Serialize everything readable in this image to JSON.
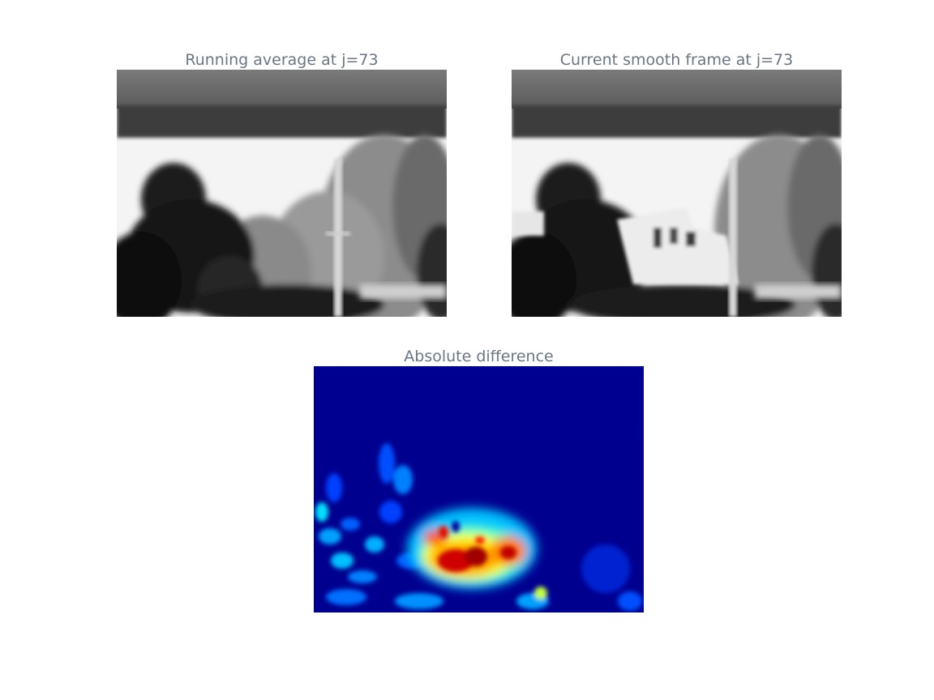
{
  "panels": {
    "running_average": {
      "title": "Running average at j=73",
      "colormap": "gray"
    },
    "current_frame": {
      "title": "Current smooth frame at j=73",
      "colormap": "gray"
    },
    "difference": {
      "title": "Absolute difference",
      "colormap": "jet"
    }
  },
  "colors": {
    "title_text": "#6b7684",
    "background": "#ffffff",
    "jet_low": "#00008f",
    "jet_high": "#8b0000"
  }
}
